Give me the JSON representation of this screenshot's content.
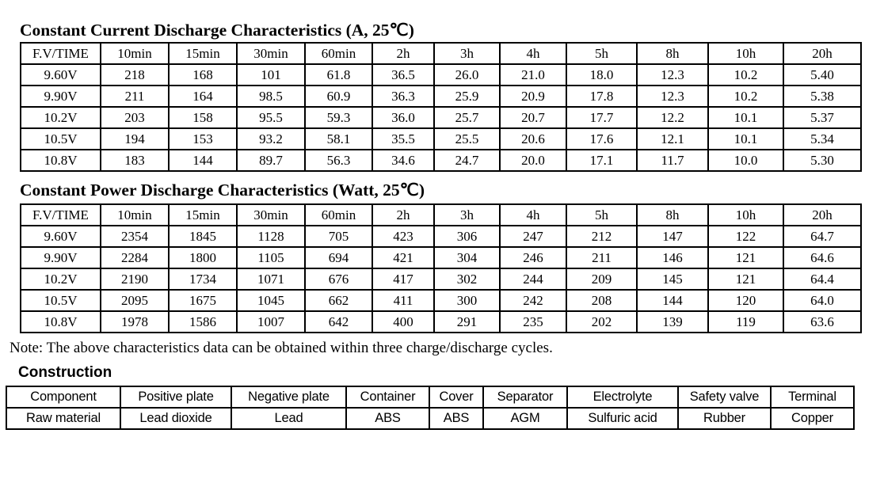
{
  "note": "Note: The above characteristics data can be obtained within three charge/discharge cycles.",
  "current_table": {
    "title": "Constant Current Discharge Characteristics (A, 25℃)",
    "headers": [
      "F.V/TIME",
      "10min",
      "15min",
      "30min",
      "60min",
      "2h",
      "3h",
      "4h",
      "5h",
      "8h",
      "10h",
      "20h"
    ],
    "rows": [
      [
        "9.60V",
        "218",
        "168",
        "101",
        "61.8",
        "36.5",
        "26.0",
        "21.0",
        "18.0",
        "12.3",
        "10.2",
        "5.40"
      ],
      [
        "9.90V",
        "211",
        "164",
        "98.5",
        "60.9",
        "36.3",
        "25.9",
        "20.9",
        "17.8",
        "12.3",
        "10.2",
        "5.38"
      ],
      [
        "10.2V",
        "203",
        "158",
        "95.5",
        "59.3",
        "36.0",
        "25.7",
        "20.7",
        "17.7",
        "12.2",
        "10.1",
        "5.37"
      ],
      [
        "10.5V",
        "194",
        "153",
        "93.2",
        "58.1",
        "35.5",
        "25.5",
        "20.6",
        "17.6",
        "12.1",
        "10.1",
        "5.34"
      ],
      [
        "10.8V",
        "183",
        "144",
        "89.7",
        "56.3",
        "34.6",
        "24.7",
        "20.0",
        "17.1",
        "11.7",
        "10.0",
        "5.30"
      ]
    ]
  },
  "power_table": {
    "title": "Constant Power Discharge Characteristics (Watt, 25℃)",
    "headers": [
      "F.V/TIME",
      "10min",
      "15min",
      "30min",
      "60min",
      "2h",
      "3h",
      "4h",
      "5h",
      "8h",
      "10h",
      "20h"
    ],
    "rows": [
      [
        "9.60V",
        "2354",
        "1845",
        "1128",
        "705",
        "423",
        "306",
        "247",
        "212",
        "147",
        "122",
        "64.7"
      ],
      [
        "9.90V",
        "2284",
        "1800",
        "1105",
        "694",
        "421",
        "304",
        "246",
        "211",
        "146",
        "121",
        "64.6"
      ],
      [
        "10.2V",
        "2190",
        "1734",
        "1071",
        "676",
        "417",
        "302",
        "244",
        "209",
        "145",
        "121",
        "64.4"
      ],
      [
        "10.5V",
        "2095",
        "1675",
        "1045",
        "662",
        "411",
        "300",
        "242",
        "208",
        "144",
        "120",
        "64.0"
      ],
      [
        "10.8V",
        "1978",
        "1586",
        "1007",
        "642",
        "400",
        "291",
        "235",
        "202",
        "139",
        "119",
        "63.6"
      ]
    ]
  },
  "construction": {
    "heading": "Construction",
    "rows": [
      [
        "Component",
        "Positive plate",
        "Negative plate",
        "Container",
        "Cover",
        "Separator",
        "Electrolyte",
        "Safety valve",
        "Terminal"
      ],
      [
        "Raw material",
        "Lead dioxide",
        "Lead",
        "ABS",
        "ABS",
        "AGM",
        "Sulfuric acid",
        "Rubber",
        "Copper"
      ]
    ]
  },
  "colors": {
    "text": "#000000",
    "background": "#ffffff",
    "border": "#000000"
  }
}
